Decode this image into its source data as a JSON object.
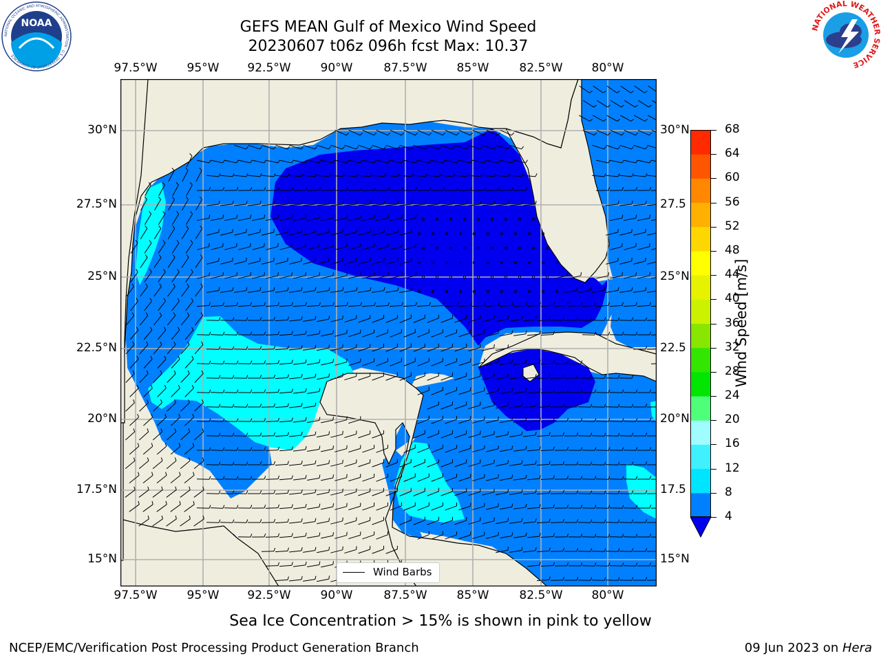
{
  "title_line1": "GEFS MEAN Gulf of Mexico Wind Speed",
  "title_line2": "20230607 t06z 096h fcst   Max: 10.37",
  "lon_ticks": [
    "97.5°W",
    "95°W",
    "92.5°W",
    "90°W",
    "87.5°W",
    "85°W",
    "82.5°W",
    "80°W"
  ],
  "lat_ticks_left": [
    "30°N",
    "27.5°N",
    "25°N",
    "22.5°N",
    "20°N",
    "17.5°N",
    "15°N"
  ],
  "lat_ticks_right": [
    "30°N",
    "27.5",
    "25°N",
    "22.5",
    "20°N",
    "17.5",
    "15°N"
  ],
  "colorbar": {
    "label": "Wind Speed [m/s]",
    "ticks": [
      "4",
      "8",
      "12",
      "16",
      "20",
      "24",
      "28",
      "32",
      "36",
      "40",
      "44",
      "48",
      "52",
      "56",
      "60",
      "64",
      "68"
    ],
    "colors": [
      "#0080ff",
      "#00e5ff",
      "#3ff0ff",
      "#9ffcff",
      "#4eff7a",
      "#00e600",
      "#33e600",
      "#88e600",
      "#ccf200",
      "#e6f200",
      "#ffff00",
      "#ffd700",
      "#ffb000",
      "#ff8800",
      "#ff5500",
      "#ff2a00"
    ],
    "under_color": "#0000ee"
  },
  "legend_label": "Wind Barbs",
  "subtitle": "Sea Ice Concentration > 15% is shown in pink to yellow",
  "footer_left": "NCEP/EMC/Verification Post Processing Product Generation Branch",
  "footer_date": "09 Jun 2023 on ",
  "footer_machine": "Hera",
  "logo_left_text": "NOAA",
  "logo_left_ring": "NATIONAL OCEANIC AND ATMOSPHERIC ADMINISTRATION · U.S. DEPARTMENT OF COMMERCE",
  "logo_right_ring": "NATIONAL WEATHER SERVICE",
  "colors": {
    "land": "#efedde",
    "low": "#0000ee",
    "mid": "#0080ff",
    "high": "#00ffff",
    "grid": "#b0b0b0"
  },
  "icons": [
    "noaa-logo",
    "nws-logo"
  ]
}
